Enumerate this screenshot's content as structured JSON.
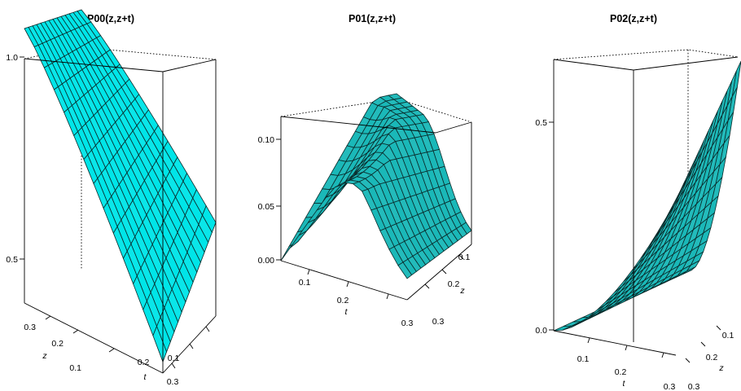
{
  "figure": {
    "surface_color": "#00e5e8",
    "shaded_surface_color": "#1ab8b8",
    "mesh_color": "#0a2a2a"
  },
  "chart_data": [
    {
      "type": "surface",
      "title": "P00(z,z+t)",
      "xlabel": "t",
      "ylabel": "z",
      "zlabel": "",
      "x_ticks": [
        "0.1",
        "0.2",
        "0.3"
      ],
      "y_ticks": [
        "0.1",
        "0.2",
        "0.3"
      ],
      "z_ticks": [
        "0.5",
        "1.0"
      ],
      "t_range": [
        0.0,
        0.33
      ],
      "z_range": [
        0.05,
        0.33
      ],
      "value_range": [
        0.35,
        1.0
      ],
      "surface": "decreasing in t from 1.0 at t=0; drops fastest at small z, reaching about 0.33 at t=0.33"
    },
    {
      "type": "surface",
      "title": "P01(z,z+t)",
      "xlabel": "t",
      "ylabel": "z",
      "zlabel": "",
      "x_ticks": [
        "0.1",
        "0.2",
        "0.3"
      ],
      "y_ticks": [
        "0.1",
        "0.2",
        "0.3"
      ],
      "z_ticks": [
        "0.00",
        "0.05",
        "0.10"
      ],
      "t_range": [
        0.0,
        0.33
      ],
      "z_range": [
        0.05,
        0.33
      ],
      "value_range": [
        0.0,
        0.12
      ],
      "surface": "0 at t=0, rises to a ridge of about 0.11 and falls toward the far corner"
    },
    {
      "type": "surface",
      "title": "P02(z,z+t)",
      "xlabel": "t",
      "ylabel": "z",
      "zlabel": "",
      "x_ticks": [
        "0.1",
        "0.2",
        "0.3"
      ],
      "y_ticks": [
        "0.1",
        "0.2",
        "0.3"
      ],
      "z_ticks": [
        "0.0",
        "0.5"
      ],
      "t_range": [
        0.0,
        0.33
      ],
      "z_range": [
        0.05,
        0.33
      ],
      "value_range": [
        0.0,
        0.75
      ],
      "surface": "0 at t=0, increasing in t to about 0.75 at the far corner"
    }
  ]
}
